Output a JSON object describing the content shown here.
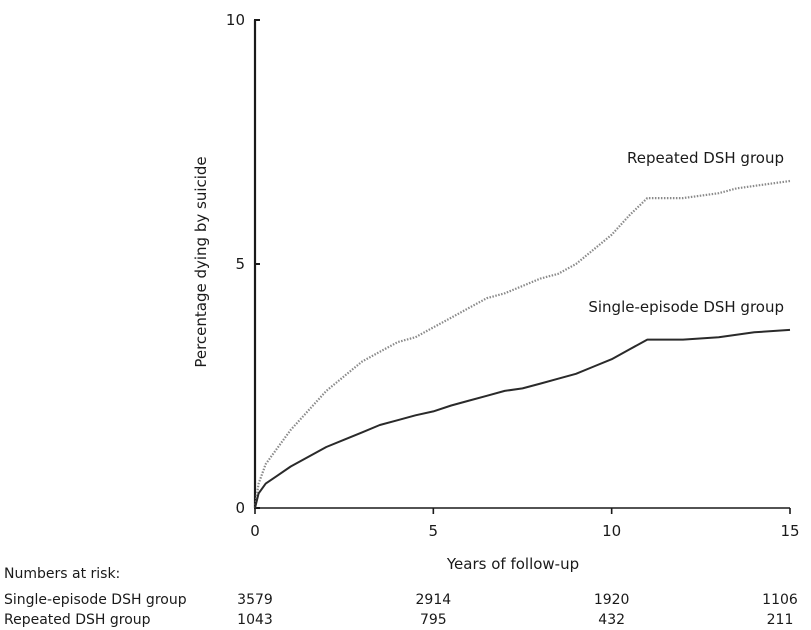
{
  "chart_data": {
    "type": "line",
    "title": "",
    "xlabel": "Years of follow-up",
    "ylabel": "Percentage dying by suicide",
    "xlim": [
      0,
      15
    ],
    "ylim": [
      0,
      10
    ],
    "x_ticks": [
      0,
      5,
      10,
      15
    ],
    "y_ticks": [
      0,
      5,
      10
    ],
    "grid": false,
    "series": [
      {
        "name": "Repeated DSH group",
        "color": "#8a8a8a",
        "style": "dotted",
        "x": [
          0,
          0.1,
          0.3,
          0.6,
          1,
          1.5,
          2,
          2.5,
          3,
          3.5,
          4,
          4.5,
          5,
          5.5,
          6,
          6.5,
          7,
          7.5,
          8,
          8.5,
          9,
          9.5,
          10,
          10.5,
          11,
          12,
          13,
          13.5,
          14,
          15
        ],
        "y": [
          0,
          0.5,
          0.9,
          1.2,
          1.6,
          2.0,
          2.4,
          2.7,
          3.0,
          3.2,
          3.4,
          3.5,
          3.7,
          3.9,
          4.1,
          4.3,
          4.4,
          4.55,
          4.7,
          4.8,
          5.0,
          5.3,
          5.6,
          6.0,
          6.35,
          6.35,
          6.45,
          6.55,
          6.6,
          6.7
        ]
      },
      {
        "name": "Single-episode DSH group",
        "color": "#2a2a2a",
        "style": "solid",
        "x": [
          0,
          0.1,
          0.3,
          0.6,
          1,
          1.5,
          2,
          2.5,
          3,
          3.5,
          4,
          4.5,
          5,
          5.5,
          6,
          6.5,
          7,
          7.5,
          8,
          8.5,
          9,
          9.5,
          10,
          10.5,
          11,
          12,
          13,
          14,
          15
        ],
        "y": [
          0,
          0.3,
          0.5,
          0.65,
          0.85,
          1.05,
          1.25,
          1.4,
          1.55,
          1.7,
          1.8,
          1.9,
          1.98,
          2.1,
          2.2,
          2.3,
          2.4,
          2.45,
          2.55,
          2.65,
          2.75,
          2.9,
          3.05,
          3.25,
          3.45,
          3.45,
          3.5,
          3.6,
          3.65
        ]
      }
    ],
    "numbers_at_risk": {
      "title": "Numbers at risk:",
      "rows": [
        {
          "label": "Single-episode DSH group",
          "values": [
            "3579",
            "2914",
            "1920",
            "1106"
          ]
        },
        {
          "label": "Repeated DSH group",
          "values": [
            "1043",
            "795",
            "432",
            "211"
          ]
        }
      ]
    }
  }
}
